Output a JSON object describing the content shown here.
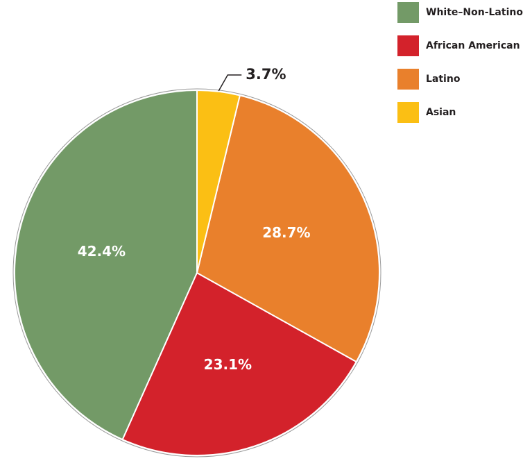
{
  "chart_data": {
    "type": "pie",
    "categories": [
      "White–Non-Latino",
      "African American",
      "Latino",
      "Asian"
    ],
    "values": [
      42.4,
      23.1,
      28.7,
      3.7
    ],
    "value_labels": [
      "42.4%",
      "23.1%",
      "28.7%",
      "3.7%"
    ],
    "colors": [
      "#739a67",
      "#d3222b",
      "#e9802c",
      "#fbbf14"
    ],
    "legend": "top-right"
  }
}
